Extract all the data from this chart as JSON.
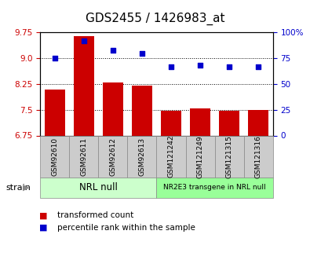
{
  "title": "GDS2455 / 1426983_at",
  "samples": [
    "GSM92610",
    "GSM92611",
    "GSM92612",
    "GSM92613",
    "GSM121242",
    "GSM121249",
    "GSM121315",
    "GSM121316"
  ],
  "transformed_count": [
    8.1,
    9.65,
    8.3,
    8.2,
    7.47,
    7.55,
    7.47,
    7.5
  ],
  "percentile_rank": [
    75,
    92,
    83,
    80,
    67,
    68,
    67,
    67
  ],
  "ylim_left": [
    6.75,
    9.75
  ],
  "ylim_right": [
    0,
    100
  ],
  "yticks_left": [
    6.75,
    7.5,
    8.25,
    9.0,
    9.75
  ],
  "yticks_right": [
    0,
    25,
    50,
    75,
    100
  ],
  "hlines": [
    9.0,
    8.25,
    7.5
  ],
  "bar_color": "#cc0000",
  "scatter_color": "#0000cc",
  "bar_bottom": 6.75,
  "groups": [
    {
      "label": "NRL null",
      "start": 0,
      "end": 4,
      "color": "#ccffcc"
    },
    {
      "label": "NR2E3 transgene in NRL null",
      "start": 4,
      "end": 8,
      "color": "#99ff99"
    }
  ],
  "strain_label": "strain",
  "legend_bar_label": "transformed count",
  "legend_scatter_label": "percentile rank within the sample",
  "title_fontsize": 11,
  "tick_fontsize": 7.5,
  "sample_label_fontsize": 6.5,
  "bg_color": "#ffffff",
  "tick_color_left": "#cc0000",
  "tick_color_right": "#0000cc",
  "xtick_bg": "#cccccc",
  "group_border_color": "#888888"
}
